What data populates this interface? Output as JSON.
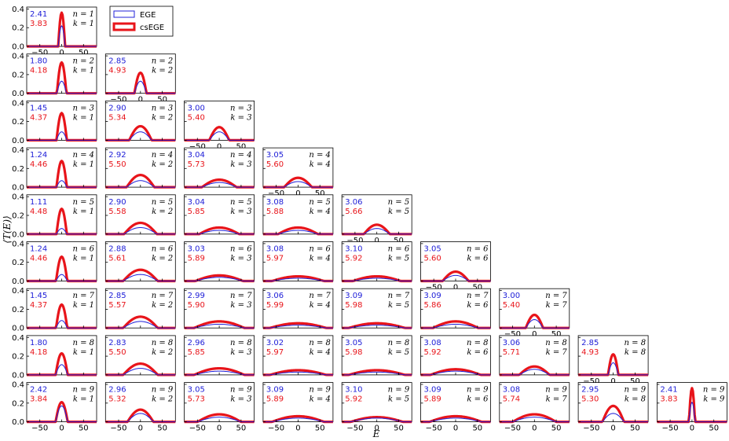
{
  "chart_data": {
    "type": "line",
    "xlabel": "E",
    "ylabel": "⟨T(E)⟩",
    "xlim": [
      -80,
      80
    ],
    "ylim": [
      0,
      0.42
    ],
    "xticks": [
      -50,
      0,
      50
    ],
    "yticks": [
      0.0,
      0.2,
      0.4
    ],
    "xtick_labels": [
      "−50",
      "0",
      "50"
    ],
    "ytick_labels": [
      "0.0",
      "0.2",
      "0.4"
    ],
    "grid": false,
    "legend": {
      "placement": "top-left, beside first panel",
      "entries": [
        {
          "label": "EGE",
          "color": "#2020d8"
        },
        {
          "label": "csEGE",
          "color": "#e8141a"
        }
      ]
    },
    "series_colors": {
      "EGE": "#2020d8",
      "csEGE": "#e8141a"
    },
    "panels": [
      {
        "n": 1,
        "k": 1,
        "ege": "2.41",
        "csege": "3.83",
        "ege_peak": 0.22,
        "csege_peak": 0.36,
        "halfwidth": 8
      },
      {
        "n": 2,
        "k": 1,
        "ege": "1.80",
        "csege": "4.18",
        "ege_peak": 0.13,
        "csege_peak": 0.33,
        "halfwidth": 11
      },
      {
        "n": 2,
        "k": 2,
        "ege": "2.85",
        "csege": "4.93",
        "ege_peak": 0.13,
        "csege_peak": 0.22,
        "halfwidth": 14
      },
      {
        "n": 3,
        "k": 1,
        "ege": "1.45",
        "csege": "4.37",
        "ege_peak": 0.09,
        "csege_peak": 0.29,
        "halfwidth": 12
      },
      {
        "n": 3,
        "k": 2,
        "ege": "2.90",
        "csege": "5.34",
        "ege_peak": 0.09,
        "csege_peak": 0.15,
        "halfwidth": 26
      },
      {
        "n": 3,
        "k": 3,
        "ege": "3.00",
        "csege": "5.40",
        "ege_peak": 0.09,
        "csege_peak": 0.14,
        "halfwidth": 23
      },
      {
        "n": 4,
        "k": 1,
        "ege": "1.24",
        "csege": "4.46",
        "ege_peak": 0.07,
        "csege_peak": 0.28,
        "halfwidth": 12
      },
      {
        "n": 4,
        "k": 2,
        "ege": "2.92",
        "csege": "5.50",
        "ege_peak": 0.07,
        "csege_peak": 0.13,
        "halfwidth": 32
      },
      {
        "n": 4,
        "k": 3,
        "ege": "3.04",
        "csege": "5.73",
        "ege_peak": 0.05,
        "csege_peak": 0.08,
        "halfwidth": 40
      },
      {
        "n": 4,
        "k": 4,
        "ege": "3.05",
        "csege": "5.60",
        "ege_peak": 0.06,
        "csege_peak": 0.1,
        "halfwidth": 32
      },
      {
        "n": 5,
        "k": 1,
        "ege": "1.11",
        "csege": "4.48",
        "ege_peak": 0.06,
        "csege_peak": 0.27,
        "halfwidth": 12
      },
      {
        "n": 5,
        "k": 2,
        "ege": "2.90",
        "csege": "5.58",
        "ege_peak": 0.07,
        "csege_peak": 0.12,
        "halfwidth": 38
      },
      {
        "n": 5,
        "k": 3,
        "ege": "3.04",
        "csege": "5.85",
        "ege_peak": 0.04,
        "csege_peak": 0.07,
        "halfwidth": 46
      },
      {
        "n": 5,
        "k": 4,
        "ege": "3.08",
        "csege": "5.88",
        "ege_peak": 0.04,
        "csege_peak": 0.07,
        "halfwidth": 46
      },
      {
        "n": 5,
        "k": 5,
        "ege": "3.06",
        "csege": "5.66",
        "ege_peak": 0.06,
        "csege_peak": 0.1,
        "halfwidth": 30
      },
      {
        "n": 6,
        "k": 1,
        "ege": "1.24",
        "csege": "4.46",
        "ege_peak": 0.07,
        "csege_peak": 0.26,
        "halfwidth": 13
      },
      {
        "n": 6,
        "k": 2,
        "ege": "2.88",
        "csege": "5.61",
        "ege_peak": 0.07,
        "csege_peak": 0.12,
        "halfwidth": 40
      },
      {
        "n": 6,
        "k": 3,
        "ege": "3.03",
        "csege": "5.89",
        "ege_peak": 0.04,
        "csege_peak": 0.06,
        "halfwidth": 55
      },
      {
        "n": 6,
        "k": 4,
        "ege": "3.08",
        "csege": "5.97",
        "ege_peak": 0.03,
        "csege_peak": 0.05,
        "halfwidth": 60
      },
      {
        "n": 6,
        "k": 5,
        "ege": "3.10",
        "csege": "5.92",
        "ege_peak": 0.03,
        "csege_peak": 0.05,
        "halfwidth": 55
      },
      {
        "n": 6,
        "k": 6,
        "ege": "3.05",
        "csege": "5.60",
        "ege_peak": 0.06,
        "csege_peak": 0.1,
        "halfwidth": 30
      },
      {
        "n": 7,
        "k": 1,
        "ege": "1.45",
        "csege": "4.37",
        "ege_peak": 0.08,
        "csege_peak": 0.25,
        "halfwidth": 13
      },
      {
        "n": 7,
        "k": 2,
        "ege": "2.85",
        "csege": "5.57",
        "ege_peak": 0.07,
        "csege_peak": 0.12,
        "halfwidth": 40
      },
      {
        "n": 7,
        "k": 3,
        "ege": "2.99",
        "csege": "5.90",
        "ege_peak": 0.04,
        "csege_peak": 0.07,
        "halfwidth": 58
      },
      {
        "n": 7,
        "k": 4,
        "ege": "3.06",
        "csege": "5.99",
        "ege_peak": 0.03,
        "csege_peak": 0.05,
        "halfwidth": 65
      },
      {
        "n": 7,
        "k": 5,
        "ege": "3.09",
        "csege": "5.98",
        "ege_peak": 0.03,
        "csege_peak": 0.05,
        "halfwidth": 65
      },
      {
        "n": 7,
        "k": 6,
        "ege": "3.09",
        "csege": "5.86",
        "ege_peak": 0.04,
        "csege_peak": 0.07,
        "halfwidth": 52
      },
      {
        "n": 7,
        "k": 7,
        "ege": "3.00",
        "csege": "5.40",
        "ege_peak": 0.09,
        "csege_peak": 0.14,
        "halfwidth": 20
      },
      {
        "n": 8,
        "k": 1,
        "ege": "1.80",
        "csege": "4.18",
        "ege_peak": 0.11,
        "csege_peak": 0.23,
        "halfwidth": 14
      },
      {
        "n": 8,
        "k": 2,
        "ege": "2.83",
        "csege": "5.50",
        "ege_peak": 0.07,
        "csege_peak": 0.12,
        "halfwidth": 40
      },
      {
        "n": 8,
        "k": 3,
        "ege": "2.96",
        "csege": "5.85",
        "ege_peak": 0.04,
        "csege_peak": 0.07,
        "halfwidth": 58
      },
      {
        "n": 8,
        "k": 4,
        "ege": "3.02",
        "csege": "5.97",
        "ege_peak": 0.03,
        "csege_peak": 0.05,
        "halfwidth": 65
      },
      {
        "n": 8,
        "k": 5,
        "ege": "3.05",
        "csege": "5.98",
        "ege_peak": 0.03,
        "csege_peak": 0.05,
        "halfwidth": 65
      },
      {
        "n": 8,
        "k": 6,
        "ege": "3.08",
        "csege": "5.92",
        "ege_peak": 0.04,
        "csege_peak": 0.06,
        "halfwidth": 58
      },
      {
        "n": 8,
        "k": 7,
        "ege": "3.06",
        "csege": "5.71",
        "ege_peak": 0.06,
        "csege_peak": 0.09,
        "halfwidth": 35
      },
      {
        "n": 8,
        "k": 8,
        "ege": "2.85",
        "csege": "4.93",
        "ege_peak": 0.13,
        "csege_peak": 0.22,
        "halfwidth": 12
      },
      {
        "n": 9,
        "k": 1,
        "ege": "2.42",
        "csege": "3.84",
        "ege_peak": 0.17,
        "csege_peak": 0.21,
        "halfwidth": 14
      },
      {
        "n": 9,
        "k": 2,
        "ege": "2.96",
        "csege": "5.32",
        "ege_peak": 0.09,
        "csege_peak": 0.13,
        "halfwidth": 30
      },
      {
        "n": 9,
        "k": 3,
        "ege": "3.05",
        "csege": "5.73",
        "ege_peak": 0.05,
        "csege_peak": 0.08,
        "halfwidth": 50
      },
      {
        "n": 9,
        "k": 4,
        "ege": "3.09",
        "csege": "5.89",
        "ege_peak": 0.04,
        "csege_peak": 0.06,
        "halfwidth": 60
      },
      {
        "n": 9,
        "k": 5,
        "ege": "3.10",
        "csege": "5.92",
        "ege_peak": 0.04,
        "csege_peak": 0.05,
        "halfwidth": 60
      },
      {
        "n": 9,
        "k": 6,
        "ege": "3.09",
        "csege": "5.89",
        "ege_peak": 0.04,
        "csege_peak": 0.06,
        "halfwidth": 60
      },
      {
        "n": 9,
        "k": 7,
        "ege": "3.08",
        "csege": "5.74",
        "ege_peak": 0.05,
        "csege_peak": 0.08,
        "halfwidth": 50
      },
      {
        "n": 9,
        "k": 8,
        "ege": "2.95",
        "csege": "5.30",
        "ege_peak": 0.09,
        "csege_peak": 0.17,
        "halfwidth": 25
      },
      {
        "n": 9,
        "k": 9,
        "ege": "2.41",
        "csege": "3.83",
        "ege_peak": 0.21,
        "csege_peak": 0.36,
        "halfwidth": 7
      }
    ]
  }
}
